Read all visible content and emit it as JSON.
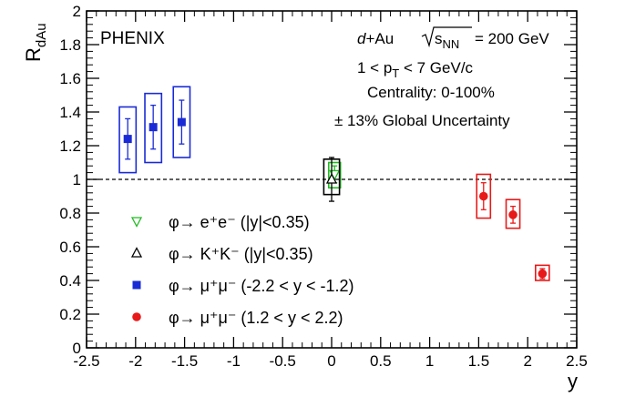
{
  "chart_data": {
    "type": "scatter",
    "brand": "PHENIX",
    "ylabel": "R",
    "ylabel_sub": "dAu",
    "xlabel": "y",
    "xlim": [
      -2.5,
      2.5
    ],
    "ylim": [
      0,
      2
    ],
    "x_ticks": [
      "-2.5",
      "-2",
      "-1.5",
      "-1",
      "-0.5",
      "0",
      "0.5",
      "1",
      "1.5",
      "2",
      "2.5"
    ],
    "y_ticks": [
      "0",
      "0.2",
      "0.4",
      "0.6",
      "0.8",
      "1",
      "1.2",
      "1.4",
      "1.6",
      "1.8",
      "2"
    ],
    "reference_line": 1,
    "annotations": {
      "system_prefix": "d",
      "system_suffix": "+Au",
      "sqrt_s": "s",
      "sqrt_s_sub": "NN",
      "energy": "= 200 GeV",
      "pt_prefix": "1 < p",
      "pt_sub": "T",
      "pt_suffix": " < 7 GeV/c",
      "centrality": "Centrality: 0-100%",
      "global_unc": "± 13% Global Uncertainty"
    },
    "series": [
      {
        "name": "φ→ e⁺e⁻ (|y|<0.35)",
        "legend_label": "φ→ e⁺e⁻ (|y|<0.35)",
        "marker": "triangle-down-open",
        "color": "#22bb22",
        "points": [
          {
            "x": 0.03,
            "y": 1.03,
            "stat": 0.05,
            "sys_lo": 0.95,
            "sys_hi": 1.1,
            "sys_halfwidth": 0.06
          }
        ]
      },
      {
        "name": "φ→ K⁺K⁻ (|y|<0.35)",
        "legend_label": "φ→ K⁺K⁻ (|y|<0.35)",
        "marker": "triangle-up-open",
        "color": "#000000",
        "points": [
          {
            "x": 0.0,
            "y": 1.0,
            "stat": 0.13,
            "sys_lo": 0.91,
            "sys_hi": 1.12,
            "sys_halfwidth": 0.08
          }
        ]
      },
      {
        "name": "φ→ μ⁺μ⁻ (-2.2 < y < -1.2)",
        "legend_label": "φ→ μ⁺μ⁻ (-2.2 < y < -1.2)",
        "marker": "square",
        "color": "#1a2bd6",
        "points": [
          {
            "x": -2.08,
            "y": 1.24,
            "stat": 0.12,
            "sys_lo": 1.04,
            "sys_hi": 1.43,
            "sys_halfwidth": 0.085
          },
          {
            "x": -1.82,
            "y": 1.31,
            "stat": 0.13,
            "sys_lo": 1.1,
            "sys_hi": 1.51,
            "sys_halfwidth": 0.085
          },
          {
            "x": -1.53,
            "y": 1.34,
            "stat": 0.13,
            "sys_lo": 1.13,
            "sys_hi": 1.55,
            "sys_halfwidth": 0.085
          }
        ]
      },
      {
        "name": "φ→ μ⁺μ⁻ (1.2 < y < 2.2)",
        "legend_label": "φ→ μ⁺μ⁻ (1.2 < y < 2.2)",
        "marker": "circle",
        "color": "#e81919",
        "points": [
          {
            "x": 1.55,
            "y": 0.9,
            "stat": 0.08,
            "sys_lo": 0.77,
            "sys_hi": 1.03,
            "sys_halfwidth": 0.07
          },
          {
            "x": 1.85,
            "y": 0.79,
            "stat": 0.05,
            "sys_lo": 0.71,
            "sys_hi": 0.88,
            "sys_halfwidth": 0.07
          },
          {
            "x": 2.15,
            "y": 0.44,
            "stat": 0.03,
            "sys_lo": 0.4,
            "sys_hi": 0.49,
            "sys_halfwidth": 0.07
          }
        ]
      }
    ]
  }
}
